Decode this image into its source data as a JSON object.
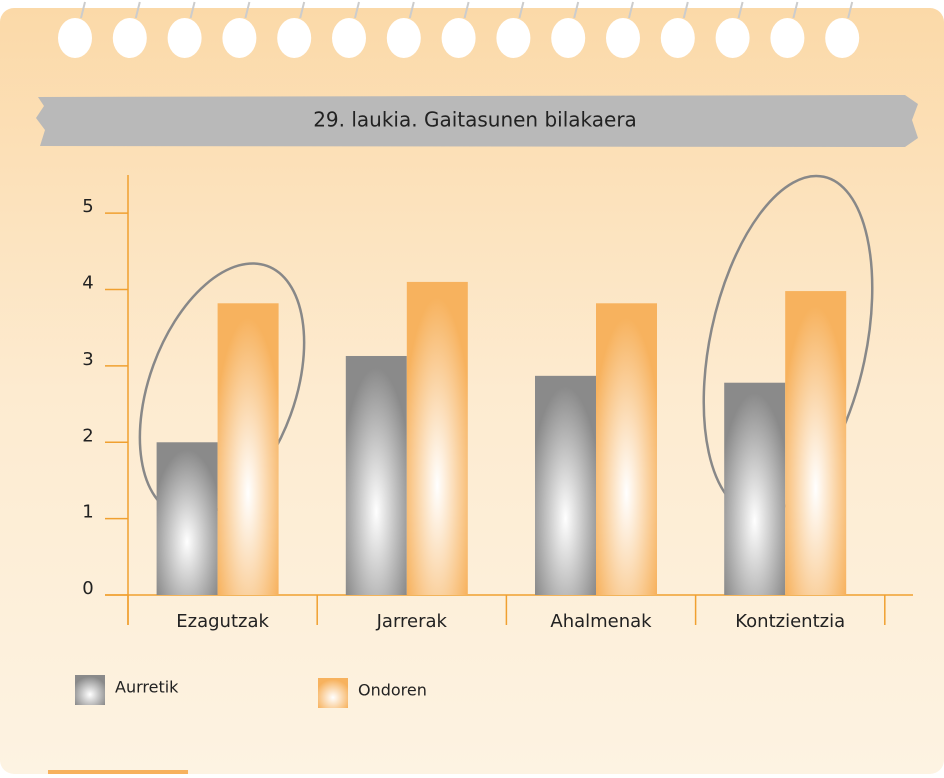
{
  "chart_data": {
    "type": "bar",
    "title": "29. laukia. Gaitasunen bilakaera",
    "categories": [
      "Ezagutzak",
      "Jarrerak",
      "Ahalmenak",
      "Kontzientzia"
    ],
    "series": [
      {
        "name": "Aurretik",
        "color": "#8a8a8a",
        "values": [
          2.0,
          3.13,
          2.87,
          2.78
        ]
      },
      {
        "name": "Ondoren",
        "color": "#f7b25e",
        "values": [
          3.82,
          4.1,
          3.82,
          3.98
        ]
      }
    ],
    "ylim": [
      0,
      5.5
    ],
    "yticks": [
      0,
      1,
      2,
      3,
      4,
      5
    ]
  }
}
